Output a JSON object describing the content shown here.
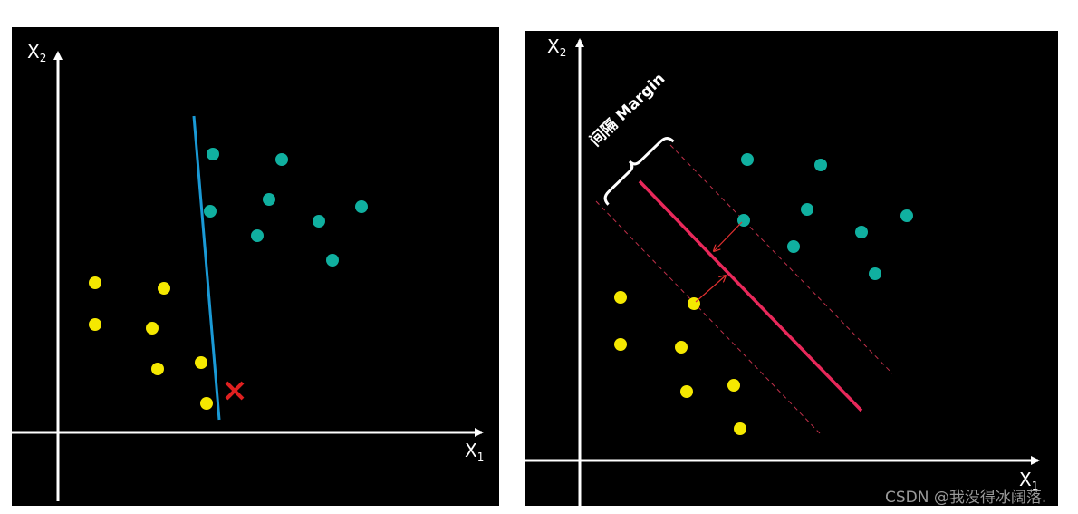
{
  "left_panel": {
    "y_axis_label": "X",
    "y_axis_subscript": "2",
    "x_axis_label": "X",
    "x_axis_subscript": "1"
  },
  "right_panel": {
    "y_axis_label": "X",
    "y_axis_subscript": "2",
    "x_axis_label": "X",
    "x_axis_subscript": "1",
    "margin_label": "间隔 Margin"
  },
  "watermark": "CSDN @我没得冰阔落."
}
